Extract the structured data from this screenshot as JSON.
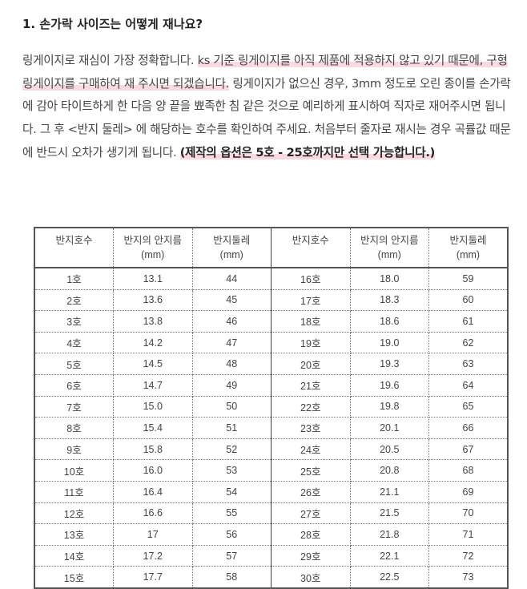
{
  "heading": "1. 손가락 사이즈는 어떻게 재나요?",
  "paragraph": {
    "part1": "링게이지로 재심이 가장 정확합니다. ",
    "highlight1": "ks 기준 링게이지를 아직 제품에 적용하지 않고 있기 때문에, 구형 링게이지를 구매하여 재 주시면 되겠습니다.",
    "part2": " 링게이지가 없으신 경우, 3mm 정도로 오린 종이를 손가락에 감아 타이트하게 한 다음 양 끝을 뾰족한 침 같은 것으로 예리하게 표시하여 직자로 재어주시면 됩니다. 그 후 <반지 둘레> 에 해당하는 호수를 확인하여 주세요. 처음부터 줄자로 재시는 경우 곡률값 때문에 반드시 오차가 생기게 됩니다. ",
    "highlight2": "(제작의 옵션은 5호 - 25호까지만 선택 가능합니다.)"
  },
  "highlight_color": "#fbd9e0",
  "table": {
    "headers": [
      [
        "반지호수",
        ""
      ],
      [
        "반지의 안지름",
        "(mm)"
      ],
      [
        "반지둘레",
        "(mm)"
      ],
      [
        "반지호수",
        ""
      ],
      [
        "반지의 안지름",
        "(mm)"
      ],
      [
        "반지둘레",
        "(mm)"
      ]
    ],
    "rows": [
      [
        "1호",
        "13.1",
        "44",
        "16호",
        "18.0",
        "59"
      ],
      [
        "2호",
        "13.6",
        "45",
        "17호",
        "18.3",
        "60"
      ],
      [
        "3호",
        "13.8",
        "46",
        "18호",
        "18.6",
        "61"
      ],
      [
        "4호",
        "14.2",
        "47",
        "19호",
        "19.0",
        "62"
      ],
      [
        "5호",
        "14.5",
        "48",
        "20호",
        "19.3",
        "63"
      ],
      [
        "6호",
        "14.7",
        "49",
        "21호",
        "19.6",
        "64"
      ],
      [
        "7호",
        "15.0",
        "50",
        "22호",
        "19.8",
        "65"
      ],
      [
        "8호",
        "15.4",
        "51",
        "23호",
        "20.1",
        "66"
      ],
      [
        "9호",
        "15.8",
        "52",
        "24호",
        "20.5",
        "67"
      ],
      [
        "10호",
        "16.0",
        "53",
        "25호",
        "20.8",
        "68"
      ],
      [
        "11호",
        "16.4",
        "54",
        "26호",
        "21.1",
        "69"
      ],
      [
        "12호",
        "16.6",
        "55",
        "27호",
        "21.5",
        "70"
      ],
      [
        "13호",
        "17",
        "56",
        "28호",
        "21.8",
        "71"
      ],
      [
        "14호",
        "17.2",
        "57",
        "29호",
        "22.1",
        "72"
      ],
      [
        "15호",
        "17.7",
        "58",
        "30호",
        "22.5",
        "73"
      ]
    ]
  }
}
